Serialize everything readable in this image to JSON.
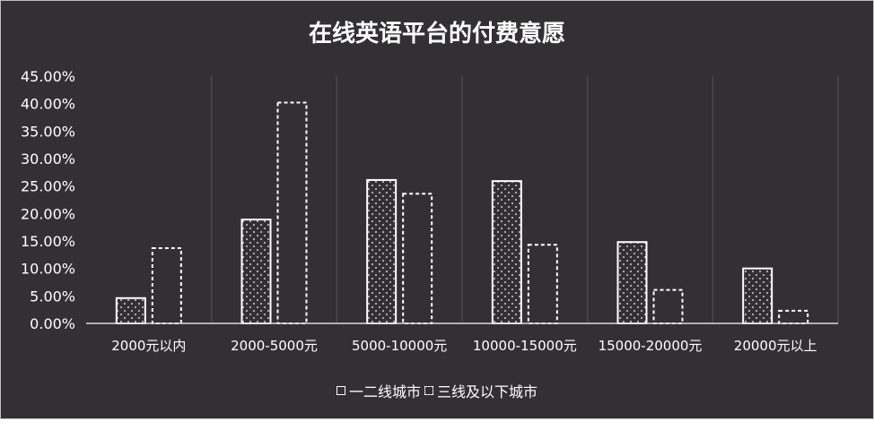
{
  "chart_data": {
    "type": "bar",
    "title": "在线英语平台的付费意愿",
    "categories": [
      "2000元以内",
      "2000-5000元",
      "5000-10000元",
      "10000-15000元",
      "15000-20000元",
      "20000元以上"
    ],
    "series": [
      {
        "name": "一二线城市",
        "values": [
          4.6,
          18.9,
          26.1,
          25.9,
          14.8,
          10.0
        ],
        "style": "dotted-fill-solid-border"
      },
      {
        "name": "三线及以下城市",
        "values": [
          13.7,
          40.2,
          23.6,
          14.3,
          6.1,
          2.3
        ],
        "style": "dashed-border"
      }
    ],
    "ylim": [
      0,
      45
    ],
    "yticks": [
      "0.00%",
      "5.00%",
      "10.00%",
      "15.00%",
      "20.00%",
      "25.00%",
      "30.00%",
      "35.00%",
      "40.00%",
      "45.00%"
    ],
    "xlabel": "",
    "ylabel": "",
    "grid": "vertical category separators",
    "legend_position": "bottom",
    "colors": {
      "background": "#323033",
      "foreground": "#ffffff",
      "separator": "#4a484b"
    }
  }
}
